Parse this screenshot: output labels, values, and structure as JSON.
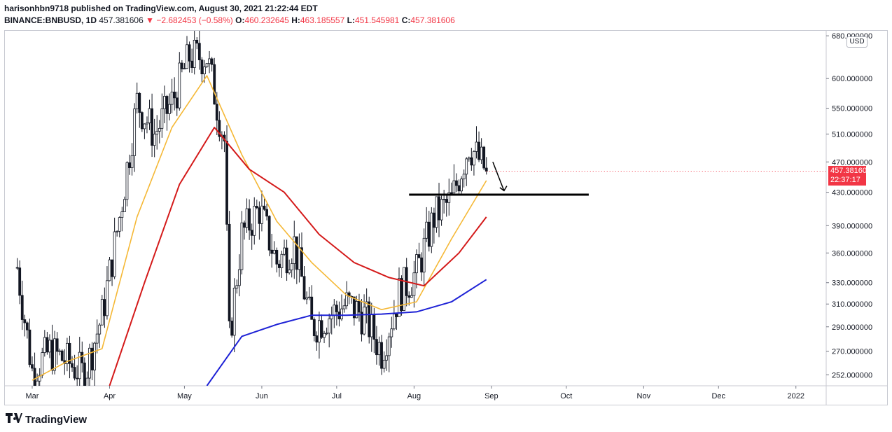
{
  "header": {
    "publisher_line": "harisonhbn9718 published on TradingView.com, August 30, 2021 21:22:44 EDT",
    "symbol": "BINANCE:BNBUSD, 1D",
    "last": "457.381606",
    "change": "−2.682453 (−0.58%)",
    "o_label": "O:",
    "o_val": "460.232645",
    "h_label": "H:",
    "h_val": "463.185557",
    "l_label": "L:",
    "l_val": "451.545981",
    "c_label": "C:",
    "c_val": "457.381606"
  },
  "currency_label": "USD",
  "price_tag": {
    "price": "457.381606",
    "countdown": "22:37:17"
  },
  "brand": "TradingView",
  "colors": {
    "up": "#131722",
    "down": "#131722",
    "ema_fast": "#f5b836",
    "ema_mid": "#d41a1a",
    "ema_slow": "#1e22d6",
    "tag": "#f23645"
  },
  "chart_data": {
    "type": "candlestick",
    "title": "BINANCE:BNBUSD, 1D",
    "y_scale": "log",
    "ylim": [
      244,
      690
    ],
    "y_ticks": [
      {
        "v": 680,
        "label": "680.000000"
      },
      {
        "v": 600,
        "label": "600.000000"
      },
      {
        "v": 550,
        "label": "550.000000"
      },
      {
        "v": 510,
        "label": "510.000000"
      },
      {
        "v": 470,
        "label": "470.000000"
      },
      {
        "v": 430,
        "label": "430.000000"
      },
      {
        "v": 390,
        "label": "390.000000"
      },
      {
        "v": 360,
        "label": "360.000000"
      },
      {
        "v": 330,
        "label": "330.000000"
      },
      {
        "v": 310,
        "label": "310.000000"
      },
      {
        "v": 290,
        "label": "290.000000"
      },
      {
        "v": 270,
        "label": "270.000000"
      },
      {
        "v": 252,
        "label": "252.000000"
      }
    ],
    "x_labels": [
      "Mar",
      "Apr",
      "May",
      "Jun",
      "Jul",
      "Aug",
      "Sep",
      "Oct",
      "Nov",
      "Dec",
      "2022"
    ],
    "price_path": [
      {
        "date": "2021-02-23",
        "close": 345
      },
      {
        "date": "2021-03-01",
        "close": 255
      },
      {
        "date": "2021-03-08",
        "close": 270
      },
      {
        "date": "2021-03-15",
        "close": 262
      },
      {
        "date": "2021-03-22",
        "close": 252
      },
      {
        "date": "2021-03-29",
        "close": 300
      },
      {
        "date": "2021-04-05",
        "close": 400
      },
      {
        "date": "2021-04-12",
        "close": 560
      },
      {
        "date": "2021-04-19",
        "close": 510
      },
      {
        "date": "2021-04-26",
        "close": 560
      },
      {
        "date": "2021-05-03",
        "close": 640
      },
      {
        "date": "2021-05-10",
        "close": 640
      },
      {
        "date": "2021-05-17",
        "close": 500
      },
      {
        "date": "2021-05-19",
        "close": 280
      },
      {
        "date": "2021-05-24",
        "close": 380
      },
      {
        "date": "2021-05-31",
        "close": 410
      },
      {
        "date": "2021-06-07",
        "close": 350
      },
      {
        "date": "2021-06-14",
        "close": 370
      },
      {
        "date": "2021-06-21",
        "close": 290
      },
      {
        "date": "2021-06-28",
        "close": 300
      },
      {
        "date": "2021-07-05",
        "close": 310
      },
      {
        "date": "2021-07-12",
        "close": 300
      },
      {
        "date": "2021-07-19",
        "close": 270
      },
      {
        "date": "2021-07-26",
        "close": 320
      },
      {
        "date": "2021-08-02",
        "close": 340
      },
      {
        "date": "2021-08-09",
        "close": 400
      },
      {
        "date": "2021-08-16",
        "close": 420
      },
      {
        "date": "2021-08-23",
        "close": 495
      },
      {
        "date": "2021-08-30",
        "close": 457.381606
      }
    ],
    "series": [
      {
        "values": [
          {
            "date": "2021-03-01",
            "v": 248
          },
          {
            "date": "2021-03-15",
            "v": 262
          },
          {
            "date": "2021-03-29",
            "v": 272
          },
          {
            "date": "2021-04-12",
            "v": 400
          },
          {
            "date": "2021-04-26",
            "v": 520
          },
          {
            "date": "2021-05-10",
            "v": 605
          },
          {
            "date": "2021-05-24",
            "v": 480
          },
          {
            "date": "2021-06-07",
            "v": 395
          },
          {
            "date": "2021-06-21",
            "v": 350
          },
          {
            "date": "2021-07-05",
            "v": 318
          },
          {
            "date": "2021-07-19",
            "v": 305
          },
          {
            "date": "2021-08-02",
            "v": 312
          },
          {
            "date": "2021-08-16",
            "v": 375
          },
          {
            "date": "2021-08-30",
            "v": 445
          }
        ]
      },
      {
        "values": [
          {
            "date": "2021-04-01",
            "v": 244
          },
          {
            "date": "2021-04-15",
            "v": 330
          },
          {
            "date": "2021-04-29",
            "v": 440
          },
          {
            "date": "2021-05-13",
            "v": 520
          },
          {
            "date": "2021-05-27",
            "v": 460
          },
          {
            "date": "2021-06-10",
            "v": 430
          },
          {
            "date": "2021-06-24",
            "v": 380
          },
          {
            "date": "2021-07-08",
            "v": 350
          },
          {
            "date": "2021-07-22",
            "v": 335
          },
          {
            "date": "2021-08-05",
            "v": 327
          },
          {
            "date": "2021-08-19",
            "v": 360
          },
          {
            "date": "2021-08-30",
            "v": 400
          }
        ]
      },
      {
        "values": [
          {
            "date": "2021-05-10",
            "v": 244
          },
          {
            "date": "2021-05-24",
            "v": 282
          },
          {
            "date": "2021-06-07",
            "v": 292
          },
          {
            "date": "2021-06-21",
            "v": 300
          },
          {
            "date": "2021-07-05",
            "v": 300
          },
          {
            "date": "2021-07-19",
            "v": 301
          },
          {
            "date": "2021-08-02",
            "v": 303
          },
          {
            "date": "2021-08-16",
            "v": 312
          },
          {
            "date": "2021-08-30",
            "v": 333
          }
        ]
      }
    ],
    "horizontal_line": {
      "v": 427,
      "from": "2021-07-30",
      "to": "2021-10-10"
    },
    "last_price": 457.381606
  }
}
